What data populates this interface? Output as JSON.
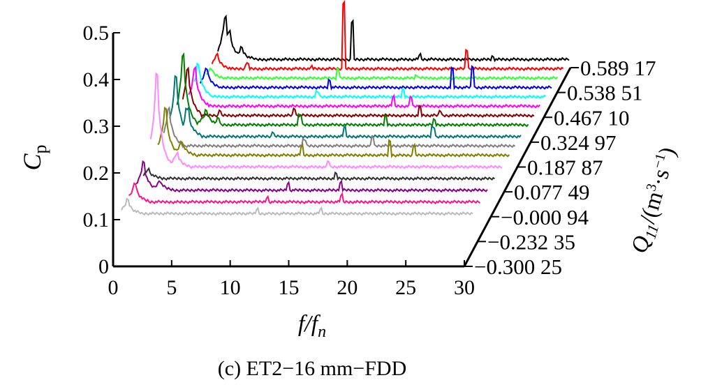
{
  "chart_data": {
    "type": "line",
    "layout": "3d-waterfall",
    "caption": "(c) ET2−16 mm−FDD",
    "xlabel": {
      "main": "f/f",
      "sub": "n"
    },
    "ylabel": {
      "main": "C",
      "sub": "p"
    },
    "zlabel": "Q11/(m3·s−1)",
    "xlim": [
      0,
      30
    ],
    "ylim": [
      0,
      0.5
    ],
    "xticks": [
      "0",
      "5",
      "10",
      "15",
      "20",
      "25",
      "30"
    ],
    "yticks": [
      "0",
      "0.1",
      "0.2",
      "0.3",
      "0.4",
      "0.5"
    ],
    "grid": false,
    "series": [
      {
        "name": "0.589 17",
        "color": "#000000",
        "baseline": 0.44,
        "peaks": [
          [
            0.6,
            0.09
          ],
          [
            1.0,
            0.06
          ],
          [
            2.0,
            0.025
          ],
          [
            11.5,
            0.08
          ],
          [
            17.3,
            0.01
          ],
          [
            23.5,
            0.006
          ]
        ]
      },
      {
        "name": "0.538 51",
        "color": "#ff0000",
        "baseline": 0.42,
        "peaks": [
          [
            0.4,
            0.03
          ],
          [
            3.0,
            0.01
          ],
          [
            8.5,
            0.006
          ],
          [
            11.3,
            0.14
          ],
          [
            21.8,
            0.04
          ]
        ]
      },
      {
        "name": "0.467 10",
        "color": "#33ff33",
        "baseline": 0.4,
        "peaks": [
          [
            0.4,
            0.02
          ],
          [
            11.2,
            0.02
          ],
          [
            18.0,
            0.005
          ]
        ]
      },
      {
        "name": "0.324 97",
        "color": "#0000ee",
        "baseline": 0.38,
        "peaks": [
          [
            0.5,
            0.04
          ],
          [
            11.0,
            0.015
          ],
          [
            21.5,
            0.04
          ],
          [
            23.2,
            0.045
          ]
        ]
      },
      {
        "name": "0.187 87",
        "color": "#00ffff",
        "baseline": 0.36,
        "peaks": [
          [
            0.3,
            0.07
          ],
          [
            10.5,
            0.01
          ],
          [
            17.8,
            0.015
          ]
        ]
      },
      {
        "name": "0.077 49",
        "color": "#ff00ff",
        "baseline": 0.34,
        "peaks": [
          [
            0.5,
            0.08
          ],
          [
            17.5,
            0.02
          ],
          [
            19.0,
            0.02
          ]
        ]
      },
      {
        "name": "−0.000 94",
        "color": "#880000",
        "baseline": 0.32,
        "peaks": [
          [
            0.4,
            0.1
          ],
          [
            3.2,
            0.012
          ],
          [
            9.5,
            0.015
          ],
          [
            20.2,
            0.018
          ],
          [
            22.0,
            0.01
          ]
        ]
      },
      {
        "name": "−0.232 35",
        "color": "#007f00",
        "baseline": 0.3,
        "peaks": [
          [
            0.5,
            0.15
          ],
          [
            2.5,
            0.03
          ],
          [
            3.5,
            0.015
          ],
          [
            10.5,
            0.02
          ],
          [
            17.8,
            0.018
          ],
          [
            22.0,
            0.01
          ]
        ]
      },
      {
        "name": "−0.300 25",
        "color": "#007777",
        "baseline": 0.275,
        "peaks": [
          [
            0.5,
            0.13
          ],
          [
            1.5,
            0.06
          ],
          [
            8.8,
            0.01
          ],
          [
            14.9,
            0.02
          ],
          [
            22.5,
            0.02
          ]
        ]
      }
    ],
    "extra_traces": [
      {
        "color": "#808080",
        "baseline": 0.255,
        "peaks": [
          [
            0.4,
            0.08
          ],
          [
            12.0,
            0.012
          ],
          [
            17.8,
            0.02
          ]
        ]
      },
      {
        "color": "#808000",
        "baseline": 0.235,
        "peaks": [
          [
            0.6,
            0.1
          ],
          [
            2.0,
            0.03
          ],
          [
            12.3,
            0.02
          ],
          [
            19.8,
            0.03
          ],
          [
            21.9,
            0.02
          ]
        ]
      },
      {
        "color": "#ff88ff",
        "baseline": 0.21,
        "peaks": [
          [
            0.5,
            0.2
          ],
          [
            2.2,
            0.03
          ],
          [
            15.2,
            0.012
          ]
        ]
      },
      {
        "color": "#303030",
        "baseline": 0.185,
        "peaks": [
          [
            0.4,
            0.02
          ],
          [
            16.4,
            0.01
          ]
        ]
      },
      {
        "color": "#880088",
        "baseline": 0.16,
        "peaks": [
          [
            0.6,
            0.06
          ],
          [
            2.0,
            0.02
          ],
          [
            13.0,
            0.015
          ],
          [
            17.5,
            0.018
          ]
        ]
      },
      {
        "color": "#ff1188",
        "baseline": 0.135,
        "peaks": [
          [
            0.5,
            0.04
          ],
          [
            11.8,
            0.01
          ],
          [
            18.2,
            0.015
          ]
        ]
      },
      {
        "color": "#bbbbbb",
        "baseline": 0.11,
        "peaks": [
          [
            0.5,
            0.03
          ],
          [
            11.6,
            0.01
          ],
          [
            17.0,
            0.01
          ]
        ]
      }
    ]
  }
}
